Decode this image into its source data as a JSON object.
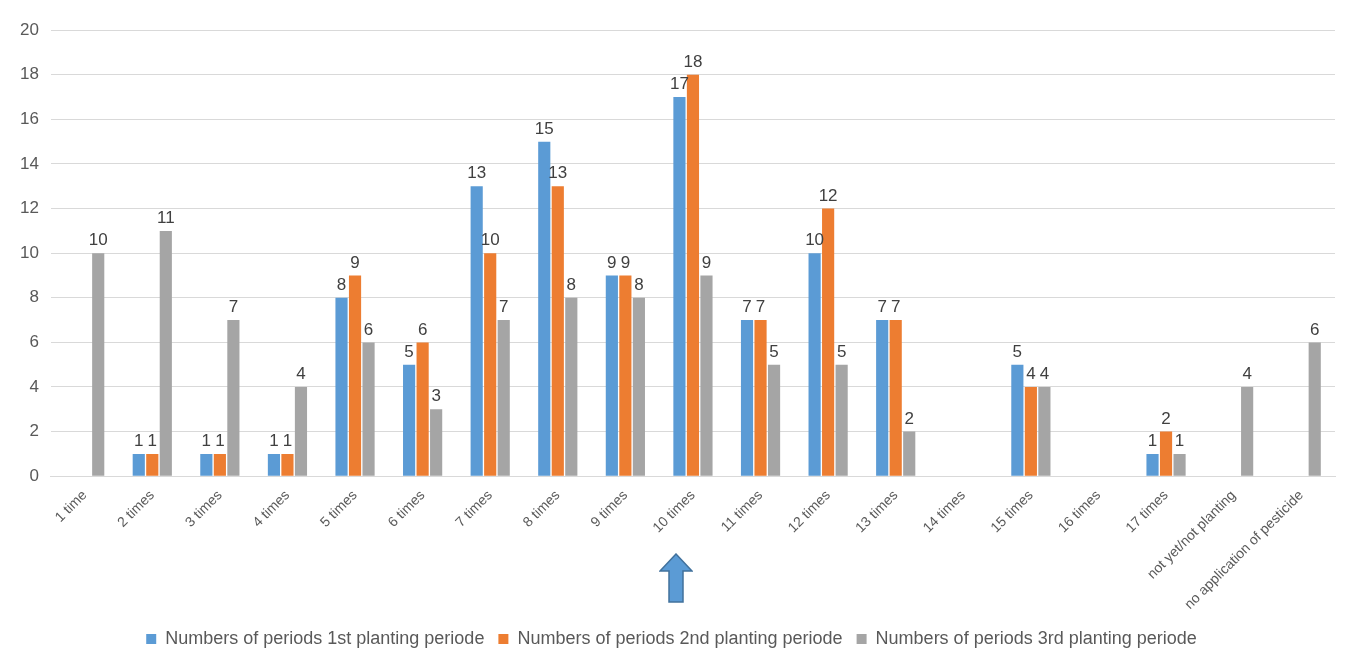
{
  "chart_data": {
    "type": "bar",
    "categories": [
      "1 time",
      "2 times",
      "3 times",
      "4 times",
      "5 times",
      "6 times",
      "7 times",
      "8 times",
      "9 times",
      "10 times",
      "11 times",
      "12 times",
      "13 times",
      "14 times",
      "15 times",
      "16 times",
      "17 times",
      "not yet/not planting",
      "no application of pesticide"
    ],
    "series": [
      {
        "name": "Numbers of periods 1st planting periode",
        "color": "#5b9bd5",
        "values": [
          null,
          1,
          1,
          1,
          8,
          5,
          13,
          15,
          9,
          17,
          7,
          10,
          7,
          null,
          5,
          null,
          1,
          null,
          null
        ]
      },
      {
        "name": "Numbers of periods 2nd planting periode",
        "color": "#ed7d31",
        "values": [
          null,
          1,
          1,
          1,
          9,
          6,
          10,
          13,
          9,
          18,
          7,
          12,
          7,
          null,
          4,
          null,
          2,
          null,
          null
        ]
      },
      {
        "name": "Numbers of periods 3rd planting periode",
        "color": "#a5a5a5",
        "values": [
          10,
          11,
          7,
          4,
          6,
          3,
          7,
          8,
          8,
          9,
          5,
          5,
          2,
          null,
          4,
          null,
          1,
          4,
          6
        ]
      }
    ],
    "ylim": [
      0,
      20
    ],
    "yticks": [
      0,
      2,
      4,
      6,
      8,
      10,
      12,
      14,
      16,
      18,
      20
    ],
    "grid": "y",
    "legend": "bottom",
    "data_labels": true
  }
}
